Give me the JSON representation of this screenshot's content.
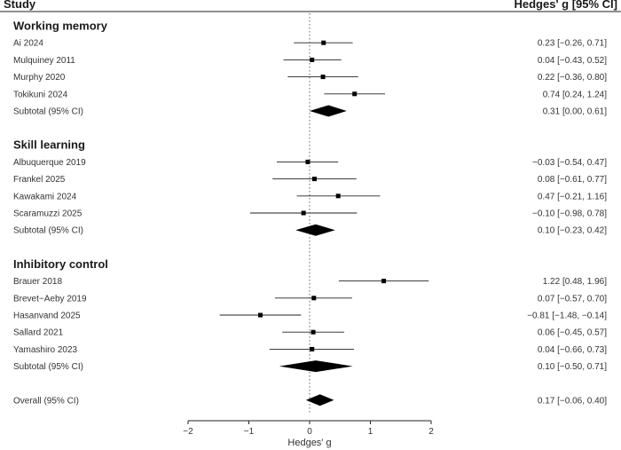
{
  "chart_data": {
    "type": "forest",
    "header": {
      "study": "Study",
      "effect": "Hedges' g [95% CI]"
    },
    "xlabel": "Hedges' g",
    "xlim": [
      -2,
      2
    ],
    "xticks": [
      "-2",
      "-1",
      "0",
      "1",
      "2"
    ],
    "groups": [
      {
        "name": "Working memory",
        "studies": [
          {
            "label": "Ai 2024",
            "g": 0.23,
            "lo": -0.26,
            "hi": 0.71,
            "text": "0.23 [−0.26, 0.71]"
          },
          {
            "label": "Mulquiney 2011",
            "g": 0.04,
            "lo": -0.43,
            "hi": 0.52,
            "text": "0.04 [−0.43, 0.52]"
          },
          {
            "label": "Murphy 2020",
            "g": 0.22,
            "lo": -0.36,
            "hi": 0.8,
            "text": "0.22 [−0.36, 0.80]"
          },
          {
            "label": "Tokikuni 2024",
            "g": 0.74,
            "lo": 0.24,
            "hi": 1.24,
            "text": "0.74 [0.24, 1.24]"
          }
        ],
        "subtotal": {
          "label": "Subtotal (95% CI)",
          "g": 0.31,
          "lo": 0.0,
          "hi": 0.61,
          "text": "0.31 [0.00, 0.61]"
        }
      },
      {
        "name": "Skill learning",
        "studies": [
          {
            "label": "Albuquerque 2019",
            "g": -0.03,
            "lo": -0.54,
            "hi": 0.47,
            "text": "−0.03 [−0.54, 0.47]"
          },
          {
            "label": "Frankel 2025",
            "g": 0.08,
            "lo": -0.61,
            "hi": 0.77,
            "text": "0.08 [−0.61, 0.77]"
          },
          {
            "label": "Kawakami 2024",
            "g": 0.47,
            "lo": -0.21,
            "hi": 1.16,
            "text": "0.47 [−0.21, 1.16]"
          },
          {
            "label": "Scaramuzzi 2025",
            "g": -0.1,
            "lo": -0.98,
            "hi": 0.78,
            "text": "−0.10 [−0.98, 0.78]"
          }
        ],
        "subtotal": {
          "label": "Subtotal (95% CI)",
          "g": 0.1,
          "lo": -0.23,
          "hi": 0.42,
          "text": "0.10 [−0.23, 0.42]"
        }
      },
      {
        "name": "Inhibitory control",
        "studies": [
          {
            "label": "Brauer 2018",
            "g": 1.22,
            "lo": 0.48,
            "hi": 1.96,
            "text": "1.22 [0.48, 1.96]"
          },
          {
            "label": "Brevet−Aeby 2019",
            "g": 0.07,
            "lo": -0.57,
            "hi": 0.7,
            "text": "0.07 [−0.57, 0.70]"
          },
          {
            "label": "Hasanvand 2025",
            "g": -0.81,
            "lo": -1.48,
            "hi": -0.14,
            "text": "−0.81 [−1.48, −0.14]"
          },
          {
            "label": "Sallard 2021",
            "g": 0.06,
            "lo": -0.45,
            "hi": 0.57,
            "text": "0.06 [−0.45, 0.57]"
          },
          {
            "label": "Yamashiro 2023",
            "g": 0.04,
            "lo": -0.66,
            "hi": 0.73,
            "text": "0.04 [−0.66, 0.73]"
          }
        ],
        "subtotal": {
          "label": "Subtotal (95% CI)",
          "g": 0.1,
          "lo": -0.5,
          "hi": 0.71,
          "text": "0.10 [−0.50, 0.71]"
        }
      }
    ],
    "overall": {
      "label": "Overall (95% CI)",
      "g": 0.17,
      "lo": -0.06,
      "hi": 0.4,
      "text": "0.17 [−0.06, 0.40]"
    },
    "reference_line_at": 0
  }
}
